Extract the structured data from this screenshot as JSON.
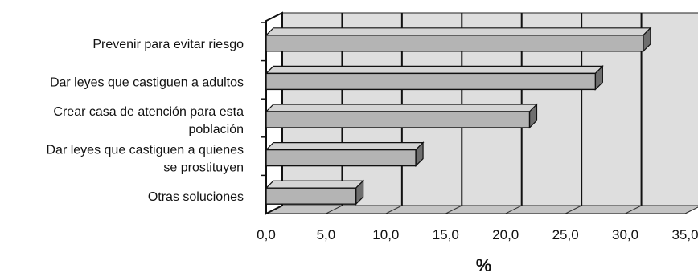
{
  "chart_data": {
    "type": "bar",
    "orientation": "horizontal",
    "style": "3d",
    "categories": [
      [
        "Prevenir para evitar riesgo"
      ],
      [
        "Dar leyes que castiguen a adultos"
      ],
      [
        "Crear casa de atención para esta",
        "población"
      ],
      [
        "Dar leyes que castiguen a quienes",
        "se prostituyen"
      ],
      [
        "Otras soluciones"
      ]
    ],
    "values": [
      31.5,
      27.5,
      22.0,
      12.5,
      7.5
    ],
    "xlabel": "%",
    "ylabel": "",
    "title": "",
    "xlim": [
      0,
      35
    ],
    "x_ticks": [
      "0,0",
      "5,0",
      "10,0",
      "15,0",
      "20,0",
      "25,0",
      "30,0",
      "35,0"
    ],
    "grid": true,
    "legend": "none",
    "colors": {
      "bar_front": "#b4b4b4",
      "bar_top": "#d4d4d4",
      "bar_side": "#6e6e6e",
      "plot_wall": "#dedede",
      "plot_floor": "#c4c4c4",
      "gridline": "#111111"
    }
  }
}
